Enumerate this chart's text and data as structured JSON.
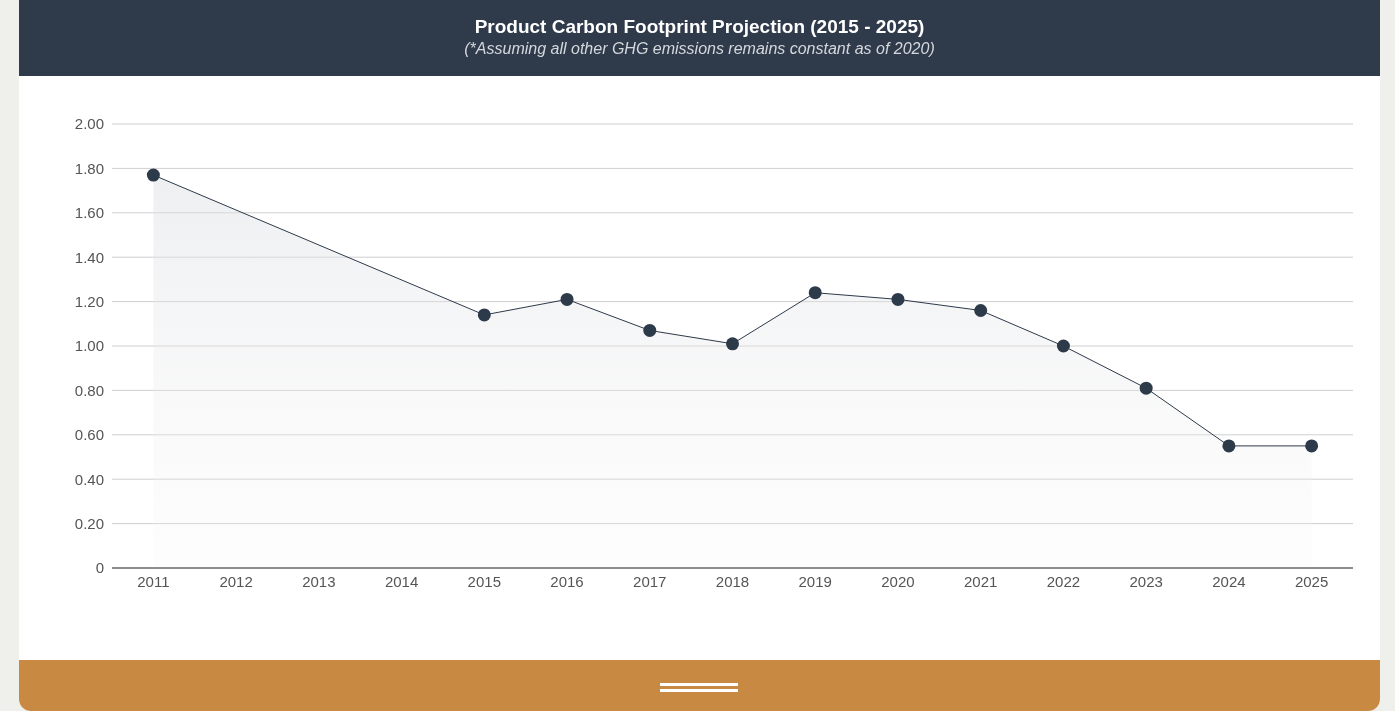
{
  "chart_data": {
    "type": "area",
    "title": "Product Carbon Footprint Projection (2015 - 2025)",
    "subtitle": "(*Assuming all other GHG emissions remains constant as of 2020)",
    "x": [
      2011,
      2015,
      2016,
      2017,
      2018,
      2019,
      2020,
      2021,
      2022,
      2023,
      2024,
      2025
    ],
    "values": [
      1.77,
      1.14,
      1.21,
      1.07,
      1.01,
      1.24,
      1.21,
      1.16,
      1.0,
      0.81,
      0.55,
      0.55
    ],
    "color": "#2d3a4a",
    "marker": "circle",
    "grid": "y",
    "xlim": [
      2010.5,
      2025.5
    ],
    "xticks": [
      2011,
      2012,
      2013,
      2014,
      2015,
      2016,
      2017,
      2018,
      2019,
      2020,
      2021,
      2022,
      2023,
      2024,
      2025
    ],
    "ylim": [
      0,
      2
    ],
    "yticks": [
      0,
      {
        "value": 0.2,
        "label": "0.20"
      },
      {
        "value": 0.4,
        "label": "0.40"
      },
      {
        "value": 0.6,
        "label": "0.60"
      },
      {
        "value": 0.8,
        "label": "0.80"
      },
      {
        "value": 1,
        "label": "1.00"
      },
      {
        "value": 1.2,
        "label": "1.20"
      },
      {
        "value": 1.4,
        "label": "1.40"
      },
      {
        "value": 1.6,
        "label": "1.60"
      },
      {
        "value": 1.8,
        "label": "1.80"
      },
      {
        "value": 2,
        "label": "2.00"
      }
    ]
  }
}
